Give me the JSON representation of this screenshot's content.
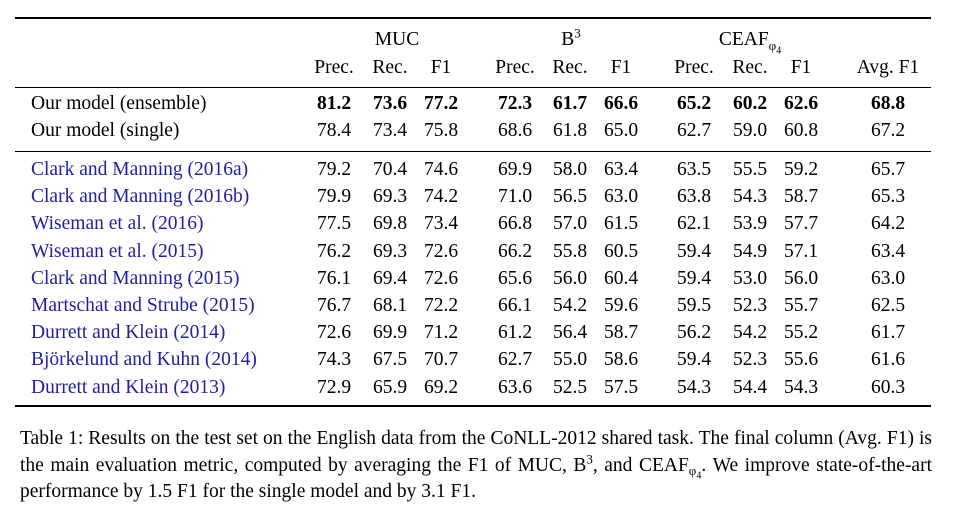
{
  "table": {
    "groups": [
      {
        "text": "MUC"
      },
      {
        "text": "B",
        "sup": "3"
      },
      {
        "text": "CEAF",
        "sub": "φ",
        "sub_sub": "4"
      }
    ],
    "subheaders": [
      "Prec.",
      "Rec.",
      "F1",
      "Prec.",
      "Rec.",
      "F1",
      "Prec.",
      "Rec.",
      "F1",
      "Avg. F1"
    ],
    "sections": [
      {
        "rows": [
          {
            "label": "Our model (ensemble)",
            "bold": true,
            "link": false,
            "cells": [
              "81.2",
              "73.6",
              "77.2",
              "72.3",
              "61.7",
              "66.6",
              "65.2",
              "60.2",
              "62.6",
              "68.8"
            ]
          },
          {
            "label": "Our model (single)",
            "bold": false,
            "link": false,
            "cells": [
              "78.4",
              "73.4",
              "75.8",
              "68.6",
              "61.8",
              "65.0",
              "62.7",
              "59.0",
              "60.8",
              "67.2"
            ]
          }
        ]
      },
      {
        "rows": [
          {
            "label": "Clark and Manning (2016a)",
            "bold": false,
            "link": true,
            "cells": [
              "79.2",
              "70.4",
              "74.6",
              "69.9",
              "58.0",
              "63.4",
              "63.5",
              "55.5",
              "59.2",
              "65.7"
            ]
          },
          {
            "label": "Clark and Manning (2016b)",
            "bold": false,
            "link": true,
            "cells": [
              "79.9",
              "69.3",
              "74.2",
              "71.0",
              "56.5",
              "63.0",
              "63.8",
              "54.3",
              "58.7",
              "65.3"
            ]
          },
          {
            "label": "Wiseman et al. (2016)",
            "bold": false,
            "link": true,
            "cells": [
              "77.5",
              "69.8",
              "73.4",
              "66.8",
              "57.0",
              "61.5",
              "62.1",
              "53.9",
              "57.7",
              "64.2"
            ]
          },
          {
            "label": "Wiseman et al. (2015)",
            "bold": false,
            "link": true,
            "cells": [
              "76.2",
              "69.3",
              "72.6",
              "66.2",
              "55.8",
              "60.5",
              "59.4",
              "54.9",
              "57.1",
              "63.4"
            ]
          },
          {
            "label": "Clark and Manning (2015)",
            "bold": false,
            "link": true,
            "cells": [
              "76.1",
              "69.4",
              "72.6",
              "65.6",
              "56.0",
              "60.4",
              "59.4",
              "53.0",
              "56.0",
              "63.0"
            ]
          },
          {
            "label": "Martschat and Strube (2015)",
            "bold": false,
            "link": true,
            "cells": [
              "76.7",
              "68.1",
              "72.2",
              "66.1",
              "54.2",
              "59.6",
              "59.5",
              "52.3",
              "55.7",
              "62.5"
            ]
          },
          {
            "label": "Durrett and Klein (2014)",
            "bold": false,
            "link": true,
            "cells": [
              "72.6",
              "69.9",
              "71.2",
              "61.2",
              "56.4",
              "58.7",
              "56.2",
              "54.2",
              "55.2",
              "61.7"
            ]
          },
          {
            "label": "Björkelund and Kuhn (2014)",
            "bold": false,
            "link": true,
            "cells": [
              "74.3",
              "67.5",
              "70.7",
              "62.7",
              "55.0",
              "58.6",
              "59.4",
              "52.3",
              "55.6",
              "61.6"
            ]
          },
          {
            "label": "Durrett and Klein (2013)",
            "bold": false,
            "link": true,
            "cells": [
              "72.9",
              "65.9",
              "69.2",
              "63.6",
              "52.5",
              "57.5",
              "54.3",
              "54.4",
              "54.3",
              "60.3"
            ]
          }
        ]
      }
    ],
    "caption": [
      {
        "text": "Table 1: Results on the test set on the English data from the CoNLL-2012 shared task. The final column (Avg. F1) is the main evaluation metric, computed by averaging the F1 of MUC, "
      },
      {
        "text": "B",
        "sup": "3"
      },
      {
        "text": ", and "
      },
      {
        "text": "CEAF",
        "sub": "φ",
        "sub_sub": "4"
      },
      {
        "text": ". We improve state-of-the-art performance by 1.5 F1 for the single model and by 3.1 F1."
      }
    ]
  }
}
